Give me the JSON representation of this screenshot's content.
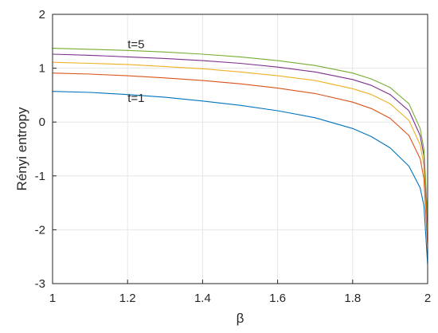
{
  "chart_data": {
    "type": "line",
    "title": "",
    "xlabel": "β",
    "ylabel": "Rényi entropy",
    "xlim": [
      1,
      2
    ],
    "ylim": [
      -3,
      2
    ],
    "xticks": [
      "1",
      "1.2",
      "1.4",
      "1.6",
      "1.8",
      "2"
    ],
    "yticks": [
      "-3",
      "-2",
      "-1",
      "0",
      "1",
      "2"
    ],
    "grid": true,
    "legend": "none",
    "series": [
      {
        "color": "#0072BD",
        "x": [
          1.0,
          1.1,
          1.2,
          1.3,
          1.4,
          1.5,
          1.6,
          1.7,
          1.8,
          1.85,
          1.9,
          1.95,
          1.98,
          1.99,
          2.0
        ],
        "values": [
          0.57,
          0.55,
          0.51,
          0.46,
          0.39,
          0.31,
          0.21,
          0.08,
          -0.12,
          -0.27,
          -0.48,
          -0.82,
          -1.22,
          -1.55,
          -2.65
        ]
      },
      {
        "color": "#D95319",
        "x": [
          1.0,
          1.1,
          1.2,
          1.3,
          1.4,
          1.5,
          1.6,
          1.7,
          1.8,
          1.85,
          1.9,
          1.95,
          1.98,
          1.99,
          2.0
        ],
        "values": [
          0.91,
          0.89,
          0.86,
          0.82,
          0.77,
          0.71,
          0.63,
          0.53,
          0.37,
          0.25,
          0.07,
          -0.25,
          -0.68,
          -1.05,
          -2.3
        ]
      },
      {
        "color": "#EDB120",
        "x": [
          1.0,
          1.1,
          1.2,
          1.3,
          1.4,
          1.5,
          1.6,
          1.7,
          1.8,
          1.85,
          1.9,
          1.95,
          1.98,
          1.99,
          2.0
        ],
        "values": [
          1.11,
          1.09,
          1.07,
          1.03,
          0.99,
          0.93,
          0.86,
          0.77,
          0.62,
          0.51,
          0.34,
          0.03,
          -0.42,
          -0.8,
          -2.05
        ]
      },
      {
        "color": "#7E2F8E",
        "x": [
          1.0,
          1.1,
          1.2,
          1.3,
          1.4,
          1.5,
          1.6,
          1.7,
          1.8,
          1.85,
          1.9,
          1.95,
          1.98,
          1.99,
          2.0
        ],
        "values": [
          1.26,
          1.24,
          1.21,
          1.18,
          1.14,
          1.09,
          1.02,
          0.93,
          0.79,
          0.68,
          0.51,
          0.21,
          -0.25,
          -0.62,
          -1.9
        ]
      },
      {
        "color": "#77AC30",
        "x": [
          1.0,
          1.1,
          1.2,
          1.3,
          1.4,
          1.5,
          1.6,
          1.7,
          1.8,
          1.85,
          1.9,
          1.95,
          1.98,
          1.99,
          2.0
        ],
        "values": [
          1.37,
          1.35,
          1.33,
          1.3,
          1.26,
          1.21,
          1.14,
          1.05,
          0.91,
          0.8,
          0.64,
          0.34,
          -0.12,
          -0.5,
          -1.8
        ]
      }
    ],
    "annotations": [
      {
        "text": "t=5",
        "x": 1.2,
        "y": 1.37
      },
      {
        "text": "t=1",
        "x": 1.2,
        "y": 0.37
      }
    ]
  }
}
